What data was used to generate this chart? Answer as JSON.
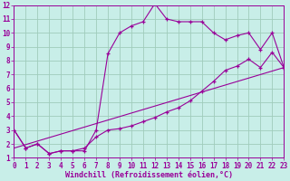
{
  "background_color": "#c8eee8",
  "grid_color": "#a0ccbb",
  "line_color": "#990099",
  "xlabel": "Windchill (Refroidissement éolien,°C)",
  "xlim": [
    0,
    23
  ],
  "ylim": [
    1,
    12
  ],
  "xticks": [
    0,
    1,
    2,
    3,
    4,
    5,
    6,
    7,
    8,
    9,
    10,
    11,
    12,
    13,
    14,
    15,
    16,
    17,
    18,
    19,
    20,
    21,
    22,
    23
  ],
  "yticks": [
    1,
    2,
    3,
    4,
    5,
    6,
    7,
    8,
    9,
    10,
    11,
    12
  ],
  "line1_x": [
    0,
    1,
    2,
    3,
    4,
    5,
    6,
    7,
    8,
    9,
    10,
    11,
    12,
    13,
    14,
    15,
    16,
    17,
    18,
    19,
    20,
    21,
    22,
    23
  ],
  "line1_y": [
    3.0,
    1.7,
    2.0,
    1.3,
    1.5,
    1.5,
    1.5,
    3.0,
    8.5,
    10.0,
    10.5,
    10.8,
    12.1,
    11.0,
    10.8,
    10.8,
    10.8,
    10.0,
    9.5,
    9.8,
    10.0,
    8.8,
    10.0,
    7.5
  ],
  "line2_x": [
    0,
    1,
    2,
    3,
    4,
    5,
    6,
    7,
    8,
    9,
    10,
    11,
    12,
    13,
    14,
    15,
    16,
    17,
    18,
    19,
    20,
    21,
    22,
    23
  ],
  "line2_y": [
    3.0,
    1.7,
    2.0,
    1.3,
    1.5,
    1.5,
    1.7,
    2.5,
    3.0,
    3.1,
    3.3,
    3.6,
    3.9,
    4.3,
    4.6,
    5.1,
    5.8,
    6.5,
    7.3,
    7.6,
    8.1,
    7.5,
    8.6,
    7.5
  ],
  "line3_x": [
    0,
    23
  ],
  "line3_y": [
    1.7,
    7.5
  ],
  "tick_fontsize": 5.5,
  "xlabel_fontsize": 6.0,
  "tick_color": "#990099",
  "spine_color": "#990099"
}
